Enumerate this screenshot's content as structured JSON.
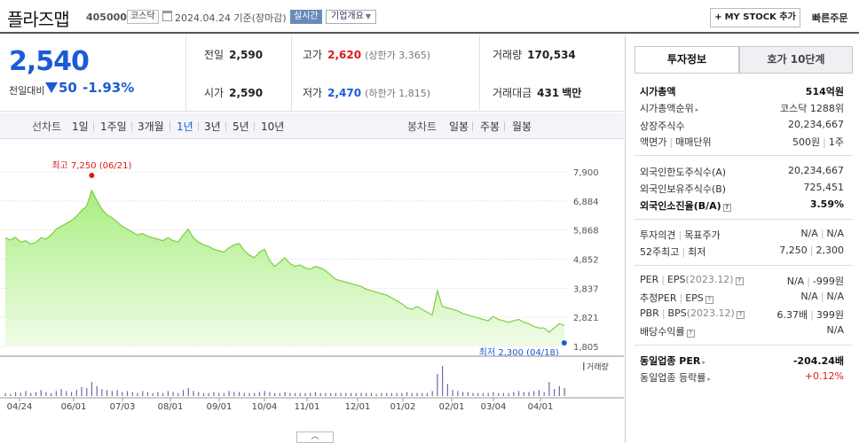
{
  "header": {
    "name": "플라즈맵",
    "code": "405000",
    "market": "코스닥",
    "date": "2024.04.24 기준(장마감)",
    "realtime": "실시간",
    "corp_info": "기업개요",
    "mystock": "MY STOCK 추가",
    "quick_order": "빠른주문"
  },
  "summary": {
    "price": "2,540",
    "prev_label": "전일대비",
    "change": "50",
    "change_pct": "-1.93%",
    "prev_close_label": "전일",
    "prev_close": "2,590",
    "high_label": "고가",
    "high": "2,620",
    "upper_limit": "(상한가 3,365)",
    "volume_label": "거래량",
    "volume": "170,534",
    "open_label": "시가",
    "open": "2,590",
    "low_label": "저가",
    "low": "2,470",
    "lower_limit": "(하한가 1,815)",
    "amount_label": "거래대금",
    "amount": "431",
    "amount_unit": "백만"
  },
  "period_bar": {
    "line_label": "선차트",
    "line_periods": [
      "1일",
      "1주일",
      "3개월",
      "1년",
      "3년",
      "5년",
      "10년"
    ],
    "active_period": "1년",
    "candle_label": "봉차트",
    "candle_periods": [
      "일봉",
      "주봉",
      "월봉"
    ]
  },
  "chart_data": {
    "type": "area",
    "y_ticks": [
      "7,900",
      "6,884",
      "5,868",
      "4,852",
      "3,837",
      "2,821",
      "1,805"
    ],
    "ylim": [
      1805,
      7900
    ],
    "x_ticks": [
      "04/24",
      "06/01",
      "07/03",
      "08/01",
      "09/01",
      "10/04",
      "11/01",
      "12/01",
      "01/02",
      "02/01",
      "03/04",
      "04/01"
    ],
    "high_label": "최고 7,250 (06/21)",
    "low_label": "최저 2,300 (04/18)",
    "high_value": 7250,
    "low_value": 2300,
    "volume_label": "거래량",
    "values": [
      5600,
      5520,
      5620,
      5450,
      5500,
      5380,
      5430,
      5600,
      5550,
      5700,
      5900,
      6000,
      6100,
      6200,
      6350,
      6550,
      6700,
      7250,
      6900,
      6600,
      6400,
      6300,
      6150,
      6000,
      5900,
      5800,
      5700,
      5750,
      5650,
      5600,
      5550,
      5500,
      5600,
      5500,
      5450,
      5700,
      5900,
      5600,
      5450,
      5350,
      5300,
      5200,
      5150,
      5100,
      5250,
      5350,
      5400,
      5150,
      5000,
      4900,
      5100,
      5200,
      4800,
      4600,
      4750,
      4900,
      4700,
      4600,
      4650,
      4550,
      4500,
      4600,
      4550,
      4450,
      4300,
      4150,
      4100,
      4050,
      4000,
      3950,
      3900,
      3800,
      3750,
      3700,
      3650,
      3600,
      3500,
      3400,
      3300,
      3150,
      3100,
      3200,
      3100,
      3000,
      2900,
      3750,
      3200,
      3150,
      3100,
      3050,
      2950,
      2900,
      2850,
      2800,
      2750,
      2700,
      2850,
      2750,
      2700,
      2650,
      2700,
      2750,
      2650,
      2600,
      2500,
      2450,
      2450,
      2300,
      2450,
      2600,
      2540
    ],
    "volume": [
      3,
      2,
      4,
      3,
      5,
      3,
      4,
      6,
      4,
      3,
      5,
      7,
      5,
      4,
      6,
      9,
      8,
      14,
      10,
      7,
      6,
      5,
      6,
      4,
      5,
      4,
      3,
      5,
      4,
      3,
      4,
      3,
      5,
      4,
      3,
      6,
      8,
      5,
      4,
      3,
      3,
      4,
      3,
      3,
      5,
      4,
      4,
      3,
      3,
      3,
      4,
      5,
      4,
      3,
      3,
      4,
      3,
      3,
      3,
      3,
      3,
      4,
      3,
      3,
      3,
      3,
      3,
      3,
      3,
      3,
      3,
      3,
      3,
      2,
      3,
      3,
      3,
      3,
      3,
      4,
      3,
      3,
      3,
      3,
      5,
      22,
      30,
      12,
      6,
      5,
      4,
      4,
      3,
      3,
      3,
      3,
      4,
      3,
      3,
      3,
      4,
      5,
      4,
      4,
      5,
      6,
      4,
      14,
      7,
      10,
      8
    ]
  },
  "invest": {
    "tab_active": "투자정보",
    "tab_other": "호가 10단계",
    "rows": {
      "cap_label": "시가총액",
      "cap": "514억원",
      "rank_label": "시가총액순위",
      "rank": "코스닥 1288위",
      "shares_label": "상장주식수",
      "shares": "20,234,667",
      "face_label": "액면가",
      "unit_label": "매매단위",
      "face": "500원",
      "unit": "1주",
      "foreign_limit_label": "외국인한도주식수(A)",
      "foreign_limit": "20,234,667",
      "foreign_hold_label": "외국인보유주식수(B)",
      "foreign_hold": "725,451",
      "foreign_rate_label": "외국인소진율(B/A)",
      "foreign_rate": "3.59%",
      "opinion_label": "투자의견",
      "target_label": "목표주가",
      "opinion": "N/A",
      "target": "N/A",
      "w52_label": "52주최고",
      "w52_low_label": "최저",
      "w52_high": "7,250",
      "w52_low": "2,300",
      "per_label": "PER",
      "eps_label": "EPS",
      "per_year": "(2023.12)",
      "per": "N/A",
      "eps": "-999원",
      "eper_label": "추정PER",
      "eeps_label": "EPS",
      "eper": "N/A",
      "eeps": "N/A",
      "pbr_label": "PBR",
      "bps_label": "BPS",
      "pbr_year": "(2023.12)",
      "pbr": "6.37배",
      "bps": "399원",
      "div_label": "배당수익률",
      "div": "N/A",
      "sector_per_label": "동일업종 PER",
      "sector_per": "-204.24배",
      "sector_rate_label": "동일업종 등락률",
      "sector_rate": "+0.12%"
    }
  }
}
